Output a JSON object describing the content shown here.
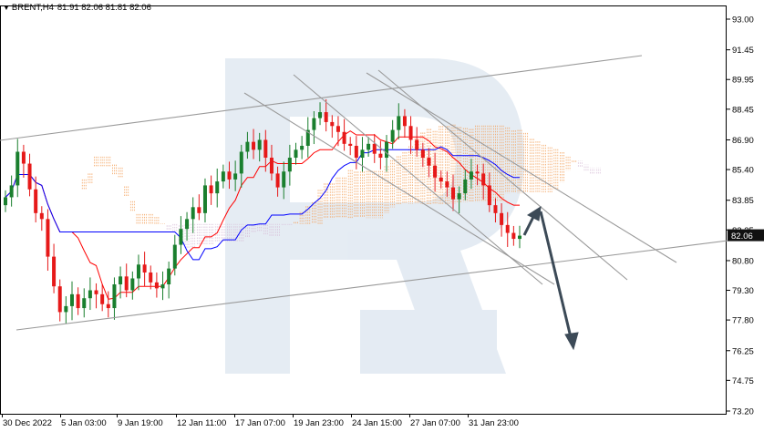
{
  "header": {
    "symbol": "BRENT,H4",
    "ohlc": "81.91 82.06 81.81 82.06"
  },
  "chart_data": {
    "type": "candlestick",
    "symbol": "BRENT",
    "timeframe": "H4",
    "ohlc_last": {
      "open": 81.91,
      "high": 82.06,
      "low": 81.81,
      "close": 82.06
    },
    "current_price": 82.06,
    "current_price_label": "82.06",
    "y_ticks": [
      "93.00",
      "91.45",
      "89.95",
      "88.45",
      "86.90",
      "85.40",
      "83.85",
      "82.35",
      "80.80",
      "79.30",
      "77.80",
      "76.25",
      "74.75",
      "73.20"
    ],
    "ylim": [
      73.2,
      93.0
    ],
    "x_ticks": [
      "30 Dec 2022",
      "5 Jan 03:00",
      "9 Jan 19:00",
      "12 Jan 11:00",
      "17 Jan 07:00",
      "19 Jan 23:00",
      "24 Jan 15:00",
      "27 Jan 07:00",
      "31 Jan 23:00"
    ],
    "grid": false,
    "candle_closes": [
      84.0,
      84.6,
      86.3,
      85.7,
      84.4,
      83.2,
      82.9,
      81.0,
      79.5,
      78.2,
      78.5,
      79.1,
      78.4,
      78.9,
      79.3,
      79.1,
      78.6,
      78.4,
      79.6,
      80.0,
      79.3,
      79.9,
      80.6,
      80.2,
      79.7,
      79.4,
      79.6,
      80.4,
      81.6,
      82.4,
      82.9,
      83.5,
      83.2,
      84.6,
      84.2,
      84.8,
      85.3,
      84.9,
      85.2,
      86.3,
      86.8,
      86.4,
      86.9,
      86.0,
      85.2,
      84.5,
      85.3,
      86.0,
      86.4,
      86.6,
      87.4,
      88.0,
      88.3,
      87.8,
      87.6,
      87.3,
      86.7,
      86.6,
      86.0,
      86.4,
      86.7,
      86.2,
      86.0,
      86.8,
      87.4,
      88.1,
      87.6,
      86.9,
      86.4,
      86.0,
      85.6,
      85.0,
      84.8,
      84.5,
      83.9,
      84.2,
      84.9,
      85.3,
      85.2,
      84.6,
      83.6,
      83.2,
      82.6,
      82.2,
      81.9,
      82.06
    ],
    "ichimoku": {
      "tenkan_sen_color": "#ff0000",
      "kijun_sen_color": "#0000ff",
      "senkou_span_a_color": "#f4a460",
      "senkou_span_b_color": "#d8bfd8"
    },
    "trendlines": [
      {
        "from": [
          "30 Dec 2022",
          87.0
        ],
        "to": [
          91.2,
          91.2
        ]
      },
      {
        "from": [
          "30 Dec 2022",
          77.6
        ],
        "to": [
          82.3,
          82.3
        ]
      }
    ],
    "forecast_arrows": [
      {
        "from": 81.9,
        "to": 83.7
      },
      {
        "from": 83.7,
        "to": 76.4
      }
    ],
    "colors": {
      "bull": "#1a7f2e",
      "bear": "#e61919",
      "channel": "#9a9a9a",
      "arrow": "#3c4a57",
      "price_label_bg": "#111111",
      "price_label_fg": "#ffffff",
      "watermark": "#dce5ef"
    }
  }
}
